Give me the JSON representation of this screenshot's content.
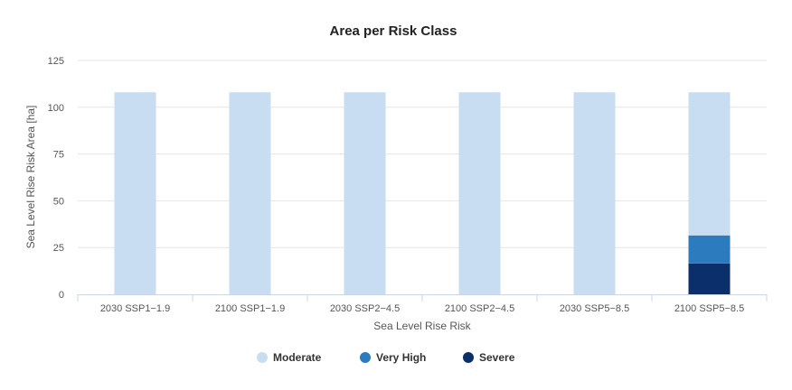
{
  "chart_data": {
    "type": "bar",
    "stacked": true,
    "title": "Area per Risk Class",
    "xlabel": "Sea Level Rise Risk",
    "ylabel": "Sea Level Rise Risk Area [ha]",
    "ylim": [
      0,
      125
    ],
    "yticks": [
      0,
      25,
      50,
      75,
      100,
      125
    ],
    "grid": true,
    "legend_position": "bottom",
    "categories": [
      "2030 SSP1−1.9",
      "2100 SSP1−1.9",
      "2030 SSP2−4.5",
      "2100 SSP2−4.5",
      "2030 SSP5−8.5",
      "2100 SSP5−8.5"
    ],
    "series": [
      {
        "name": "Severe",
        "color": "#0b2f6b",
        "values": [
          0,
          0,
          0,
          0,
          0,
          16.5
        ]
      },
      {
        "name": "Very High",
        "color": "#2b7bbe",
        "values": [
          0,
          0,
          0,
          0,
          0,
          15
        ]
      },
      {
        "name": "Moderate",
        "color": "#c8ddf1",
        "values": [
          108,
          108,
          108,
          108,
          108,
          76.5
        ]
      }
    ],
    "legend_order": [
      "Moderate",
      "Very High",
      "Severe"
    ]
  }
}
